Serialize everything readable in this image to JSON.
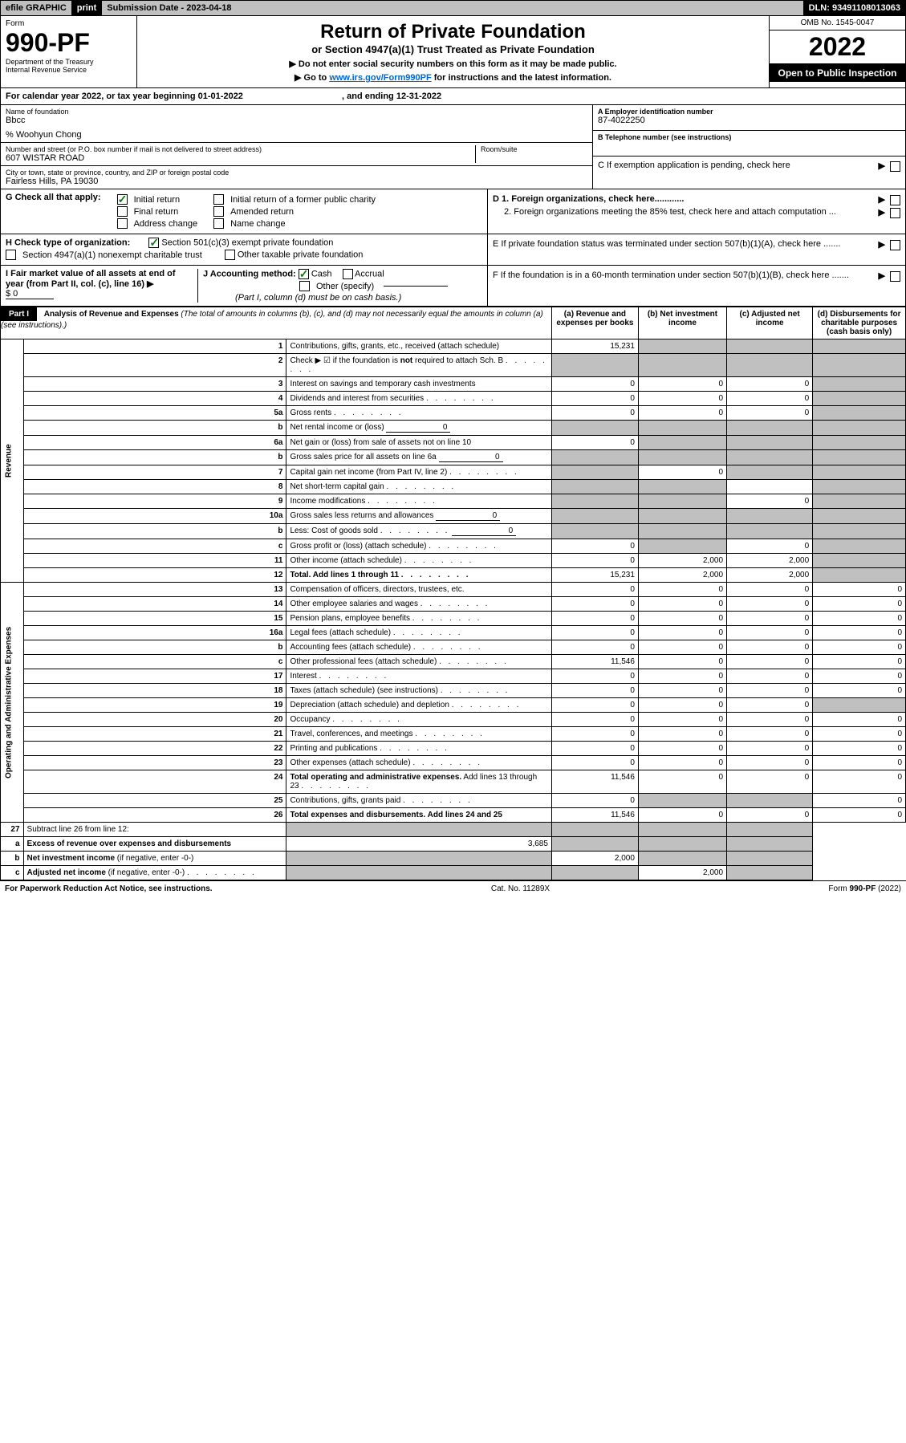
{
  "topbar": {
    "efile": "efile GRAPHIC",
    "print": "print",
    "sub": "Submission Date - 2023-04-18",
    "dln": "DLN: 93491108013063"
  },
  "header": {
    "form_label": "Form",
    "form_num": "990-PF",
    "dept": "Department of the Treasury",
    "irs": "Internal Revenue Service",
    "title": "Return of Private Foundation",
    "subtitle": "or Section 4947(a)(1) Trust Treated as Private Foundation",
    "note1": "▶ Do not enter social security numbers on this form as it may be made public.",
    "note2_pre": "▶ Go to ",
    "note2_link": "www.irs.gov/Form990PF",
    "note2_post": " for instructions and the latest information.",
    "omb": "OMB No. 1545-0047",
    "year": "2022",
    "open": "Open to Public Inspection"
  },
  "cal": {
    "pre": "For calendar year 2022, or tax year beginning ",
    "begin": "01-01-2022",
    "mid": ", and ending ",
    "end": "12-31-2022"
  },
  "info": {
    "name_lbl": "Name of foundation",
    "name": "Bbcc",
    "care": "% Woohyun Chong",
    "addr_lbl": "Number and street (or P.O. box number if mail is not delivered to street address)",
    "addr": "607 WISTAR ROAD",
    "room_lbl": "Room/suite",
    "city_lbl": "City or town, state or province, country, and ZIP or foreign postal code",
    "city": "Fairless Hills, PA  19030",
    "ein_lbl": "A Employer identification number",
    "ein": "87-4022250",
    "tel_lbl": "B Telephone number (see instructions)",
    "c_lbl": "C If exemption application is pending, check here",
    "d1": "D 1. Foreign organizations, check here............",
    "d2": "2. Foreign organizations meeting the 85% test, check here and attach computation ...",
    "e": "E  If private foundation status was terminated under section 507(b)(1)(A), check here .......",
    "f": "F  If the foundation is in a 60-month termination under section 507(b)(1)(B), check here ......."
  },
  "g": {
    "lbl": "G Check all that apply:",
    "o1": "Initial return",
    "o2": "Final return",
    "o3": "Address change",
    "o4": "Initial return of a former public charity",
    "o5": "Amended return",
    "o6": "Name change"
  },
  "h": {
    "lbl": "H Check type of organization:",
    "o1": "Section 501(c)(3) exempt private foundation",
    "o2": "Section 4947(a)(1) nonexempt charitable trust",
    "o3": "Other taxable private foundation"
  },
  "i": {
    "lbl": "I Fair market value of all assets at end of year (from Part II, col. (c), line 16) ▶",
    "amt": "$  0"
  },
  "j": {
    "lbl": "J Accounting method:",
    "o1": "Cash",
    "o2": "Accrual",
    "o3": "Other (specify)",
    "note": "(Part I, column (d) must be on cash basis.)"
  },
  "part1": {
    "hdr": "Part I",
    "title": "Analysis of Revenue and Expenses",
    "note": "(The total of amounts in columns (b), (c), and (d) may not necessarily equal the amounts in column (a) (see instructions).)",
    "cols": {
      "a": "(a)   Revenue and expenses per books",
      "b": "(b)   Net investment income",
      "c": "(c)   Adjusted net income",
      "d": "(d)   Disbursements for charitable purposes (cash basis only)"
    }
  },
  "rev_lbl": "Revenue",
  "exp_lbl": "Operating and Administrative Expenses",
  "rows": [
    {
      "n": "1",
      "d": "Contributions, gifts, grants, etc., received (attach schedule)",
      "a": "15,231",
      "bsh": 1,
      "csh": 1,
      "dsh": 1
    },
    {
      "n": "2",
      "d": "Check ▶ ☑ if the foundation is <b>not</b> required to attach Sch. B",
      "dots": 1,
      "ash": 1,
      "bsh": 1,
      "csh": 1,
      "dsh": 1
    },
    {
      "n": "3",
      "d": "Interest on savings and temporary cash investments",
      "a": "0",
      "b": "0",
      "c": "0",
      "dsh": 1
    },
    {
      "n": "4",
      "d": "Dividends and interest from securities",
      "dots": 1,
      "a": "0",
      "b": "0",
      "c": "0",
      "dsh": 1
    },
    {
      "n": "5a",
      "d": "Gross rents",
      "dots": 1,
      "a": "0",
      "b": "0",
      "c": "0",
      "dsh": 1
    },
    {
      "n": "b",
      "d": "Net rental income or (loss)",
      "inline": "0",
      "ash": 1,
      "bsh": 1,
      "csh": 1,
      "dsh": 1
    },
    {
      "n": "6a",
      "d": "Net gain or (loss) from sale of assets not on line 10",
      "a": "0",
      "bsh": 1,
      "csh": 1,
      "dsh": 1
    },
    {
      "n": "b",
      "d": "Gross sales price for all assets on line 6a",
      "inline": "0",
      "ash": 1,
      "bsh": 1,
      "csh": 1,
      "dsh": 1
    },
    {
      "n": "7",
      "d": "Capital gain net income (from Part IV, line 2)",
      "dots": 1,
      "ash": 1,
      "b": "0",
      "csh": 1,
      "dsh": 1
    },
    {
      "n": "8",
      "d": "Net short-term capital gain",
      "dots": 1,
      "ash": 1,
      "bsh": 1,
      "dsh": 1
    },
    {
      "n": "9",
      "d": "Income modifications",
      "dots": 1,
      "ash": 1,
      "bsh": 1,
      "c": "0",
      "dsh": 1
    },
    {
      "n": "10a",
      "d": "Gross sales less returns and allowances",
      "inline": "0",
      "ash": 1,
      "bsh": 1,
      "csh": 1,
      "dsh": 1
    },
    {
      "n": "b",
      "d": "Less: Cost of goods sold",
      "dots": 1,
      "inline": "0",
      "ash": 1,
      "bsh": 1,
      "csh": 1,
      "dsh": 1
    },
    {
      "n": "c",
      "d": "Gross profit or (loss) (attach schedule)",
      "dots": 1,
      "a": "0",
      "bsh": 1,
      "c": "0",
      "dsh": 1
    },
    {
      "n": "11",
      "d": "Other income (attach schedule)",
      "dots": 1,
      "a": "0",
      "b": "2,000",
      "c": "2,000",
      "dsh": 1
    },
    {
      "n": "12",
      "d": "<b>Total.</b> Add lines 1 through 11",
      "dots": 1,
      "a": "15,231",
      "b": "2,000",
      "c": "2,000",
      "dsh": 1,
      "bold": 1
    }
  ],
  "exp_rows": [
    {
      "n": "13",
      "d": "Compensation of officers, directors, trustees, etc.",
      "a": "0",
      "b": "0",
      "c": "0",
      "dv": "0"
    },
    {
      "n": "14",
      "d": "Other employee salaries and wages",
      "dots": 1,
      "a": "0",
      "b": "0",
      "c": "0",
      "dv": "0"
    },
    {
      "n": "15",
      "d": "Pension plans, employee benefits",
      "dots": 1,
      "a": "0",
      "b": "0",
      "c": "0",
      "dv": "0"
    },
    {
      "n": "16a",
      "d": "Legal fees (attach schedule)",
      "dots": 1,
      "a": "0",
      "b": "0",
      "c": "0",
      "dv": "0"
    },
    {
      "n": "b",
      "d": "Accounting fees (attach schedule)",
      "dots": 1,
      "a": "0",
      "b": "0",
      "c": "0",
      "dv": "0"
    },
    {
      "n": "c",
      "d": "Other professional fees (attach schedule)",
      "dots": 1,
      "a": "11,546",
      "b": "0",
      "c": "0",
      "dv": "0"
    },
    {
      "n": "17",
      "d": "Interest",
      "dots": 1,
      "a": "0",
      "b": "0",
      "c": "0",
      "dv": "0"
    },
    {
      "n": "18",
      "d": "Taxes (attach schedule) (see instructions)",
      "dots": 1,
      "a": "0",
      "b": "0",
      "c": "0",
      "dv": "0"
    },
    {
      "n": "19",
      "d": "Depreciation (attach schedule) and depletion",
      "dots": 1,
      "a": "0",
      "b": "0",
      "c": "0",
      "dsh": 1
    },
    {
      "n": "20",
      "d": "Occupancy",
      "dots": 1,
      "a": "0",
      "b": "0",
      "c": "0",
      "dv": "0"
    },
    {
      "n": "21",
      "d": "Travel, conferences, and meetings",
      "dots": 1,
      "a": "0",
      "b": "0",
      "c": "0",
      "dv": "0"
    },
    {
      "n": "22",
      "d": "Printing and publications",
      "dots": 1,
      "a": "0",
      "b": "0",
      "c": "0",
      "dv": "0"
    },
    {
      "n": "23",
      "d": "Other expenses (attach schedule)",
      "dots": 1,
      "a": "0",
      "b": "0",
      "c": "0",
      "dv": "0"
    },
    {
      "n": "24",
      "d": "<b>Total operating and administrative expenses.</b> Add lines 13 through 23",
      "dots": 1,
      "a": "11,546",
      "b": "0",
      "c": "0",
      "dv": "0"
    },
    {
      "n": "25",
      "d": "Contributions, gifts, grants paid",
      "dots": 1,
      "a": "0",
      "bsh": 1,
      "csh": 1,
      "dv": "0"
    },
    {
      "n": "26",
      "d": "<b>Total expenses and disbursements.</b> Add lines 24 and 25",
      "a": "11,546",
      "b": "0",
      "c": "0",
      "dv": "0",
      "bold": 1
    }
  ],
  "sub_rows": [
    {
      "n": "27",
      "d": "Subtract line 26 from line 12:",
      "ash": 1,
      "bsh": 1,
      "csh": 1,
      "dsh": 1
    },
    {
      "n": "a",
      "d": "<b>Excess of revenue over expenses and disbursements</b>",
      "a": "3,685",
      "bsh": 1,
      "csh": 1,
      "dsh": 1
    },
    {
      "n": "b",
      "d": "<b>Net investment income</b> (if negative, enter -0-)",
      "ash": 1,
      "b": "2,000",
      "csh": 1,
      "dsh": 1
    },
    {
      "n": "c",
      "d": "<b>Adjusted net income</b> (if negative, enter -0-)",
      "dots": 1,
      "ash": 1,
      "bsh": 1,
      "c": "2,000",
      "dsh": 1
    }
  ],
  "ftr": {
    "l": "For Paperwork Reduction Act Notice, see instructions.",
    "c": "Cat. No. 11289X",
    "r": "Form 990-PF (2022)"
  }
}
